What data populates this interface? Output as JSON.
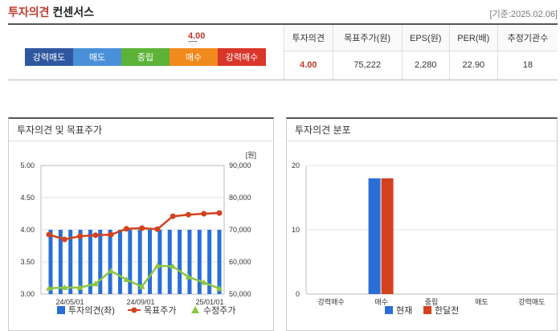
{
  "header": {
    "title_red": "투자의견",
    "title_black": "컨센서스",
    "date": "[기준:2025.02.06]"
  },
  "scale": {
    "current_value": "4.00",
    "segments": [
      {
        "label": "강력매도",
        "color": "#2e57a0"
      },
      {
        "label": "매도",
        "color": "#4a90d9"
      },
      {
        "label": "중립",
        "color": "#5cb338"
      },
      {
        "label": "매수",
        "color": "#f08a1d"
      },
      {
        "label": "강력매수",
        "color": "#d9352a"
      }
    ]
  },
  "table": {
    "headers": [
      "투자의견",
      "목표주가(원)",
      "EPS(원)",
      "PER(배)",
      "추정기관수"
    ],
    "values": [
      "4.00",
      "75,222",
      "2,280",
      "22.90",
      "18"
    ]
  },
  "chart1": {
    "title": "투자의견 및 목표주가",
    "unit": "[원]",
    "legend": [
      "투자의견(좌)",
      "목표주가",
      "수정주가"
    ]
  },
  "chart2": {
    "title": "투자의견 분포",
    "legend": [
      "현재",
      "한달전"
    ]
  },
  "chart_data": [
    {
      "type": "bar+line",
      "title": "투자의견 및 목표주가",
      "x_ticks": [
        "24/05/01",
        "24/09/01",
        "25/01/01"
      ],
      "y_left": {
        "ticks": [
          "5.00",
          "4.50",
          "4.00",
          "3.50",
          "3.00"
        ],
        "range": [
          3.0,
          5.0
        ]
      },
      "y_right": {
        "label": "[원]",
        "ticks": [
          "90,000",
          "80,000",
          "70,000",
          "60,000",
          "50,000"
        ],
        "range": [
          50000,
          90000
        ]
      },
      "series": [
        {
          "name": "투자의견(좌)",
          "type": "bar",
          "color": "#2a6fd6",
          "values": [
            4.0,
            4.0,
            4.0,
            4.0,
            4.0,
            4.0,
            4.0,
            4.0,
            4.0,
            4.0,
            4.0,
            4.0,
            4.0,
            4.0,
            4.0,
            4.0,
            4.0,
            4.0
          ]
        },
        {
          "name": "목표주가",
          "type": "line",
          "color": "#d4411e",
          "values": [
            68500,
            67000,
            68000,
            68300,
            68500,
            70300,
            70500,
            70200,
            74200,
            74700,
            75000,
            75222
          ]
        },
        {
          "name": "수정주가",
          "type": "line",
          "color": "#8cc63f",
          "values": [
            51800,
            52000,
            52000,
            53200,
            57200,
            54500,
            52300,
            58800,
            58600,
            55300,
            53600,
            51700
          ]
        }
      ]
    },
    {
      "type": "bar",
      "title": "투자의견 분포",
      "categories": [
        "강력매수",
        "매수",
        "중립",
        "매도",
        "강력매도"
      ],
      "y_ticks": [
        "20",
        "10",
        "0"
      ],
      "ylim": [
        0,
        20
      ],
      "series": [
        {
          "name": "현재",
          "color": "#2a6fd6",
          "values": [
            0,
            18,
            0,
            0,
            0
          ]
        },
        {
          "name": "한달전",
          "color": "#d4411e",
          "values": [
            0,
            18,
            0,
            0,
            0
          ]
        }
      ]
    }
  ]
}
